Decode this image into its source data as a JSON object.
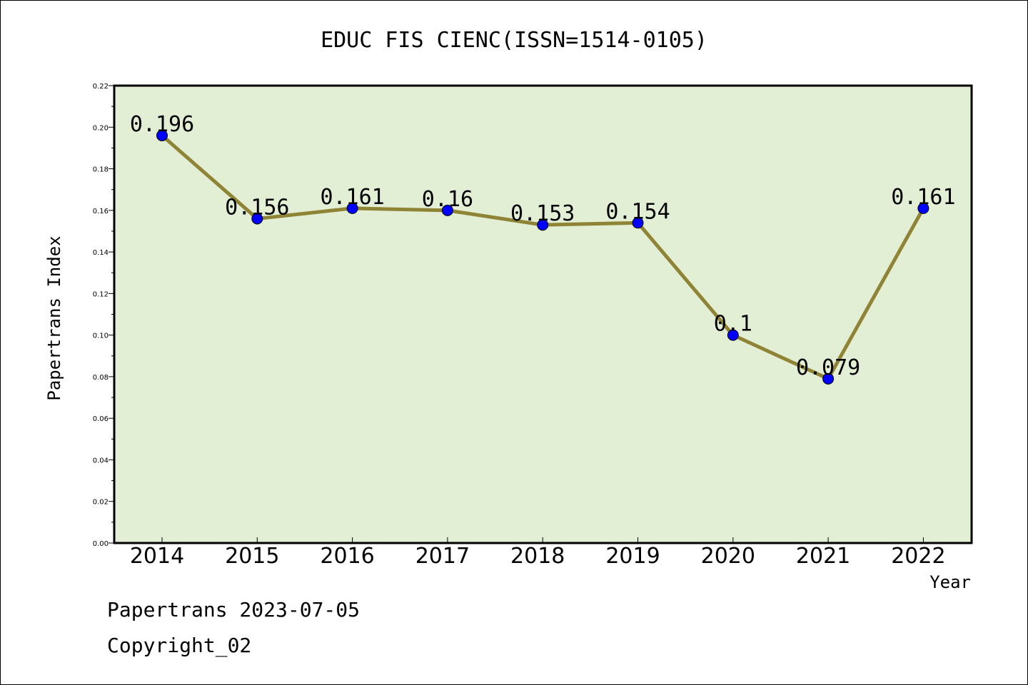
{
  "chart_data": {
    "type": "line",
    "title": "EDUC FIS CIENC(ISSN=1514-0105)",
    "xlabel": "Year",
    "ylabel": "Papertrans Index",
    "categories": [
      "2014",
      "2015",
      "2016",
      "2017",
      "2018",
      "2019",
      "2020",
      "2021",
      "2022"
    ],
    "series": [
      {
        "values": [
          0.196,
          0.156,
          0.161,
          0.16,
          0.153,
          0.154,
          0.1,
          0.079,
          0.161
        ],
        "labels": [
          "0.196",
          "0.156",
          "0.161",
          "0.16",
          "0.153",
          "0.154",
          "0.1",
          "0.079",
          "0.161"
        ]
      }
    ],
    "ylim": [
      0,
      0.22
    ],
    "yticks": [
      "0.00",
      "0.02",
      "0.04",
      "0.06",
      "0.08",
      "0.10",
      "0.12",
      "0.14",
      "0.16",
      "0.18",
      "0.20",
      "0.22"
    ],
    "grid": false,
    "colors": {
      "plot_background": "#e2efd5",
      "line": "#8f8436",
      "marker": "#0000ff"
    }
  },
  "footer": {
    "line1": "Papertrans 2023-07-05",
    "line2": "Copyright_02"
  }
}
